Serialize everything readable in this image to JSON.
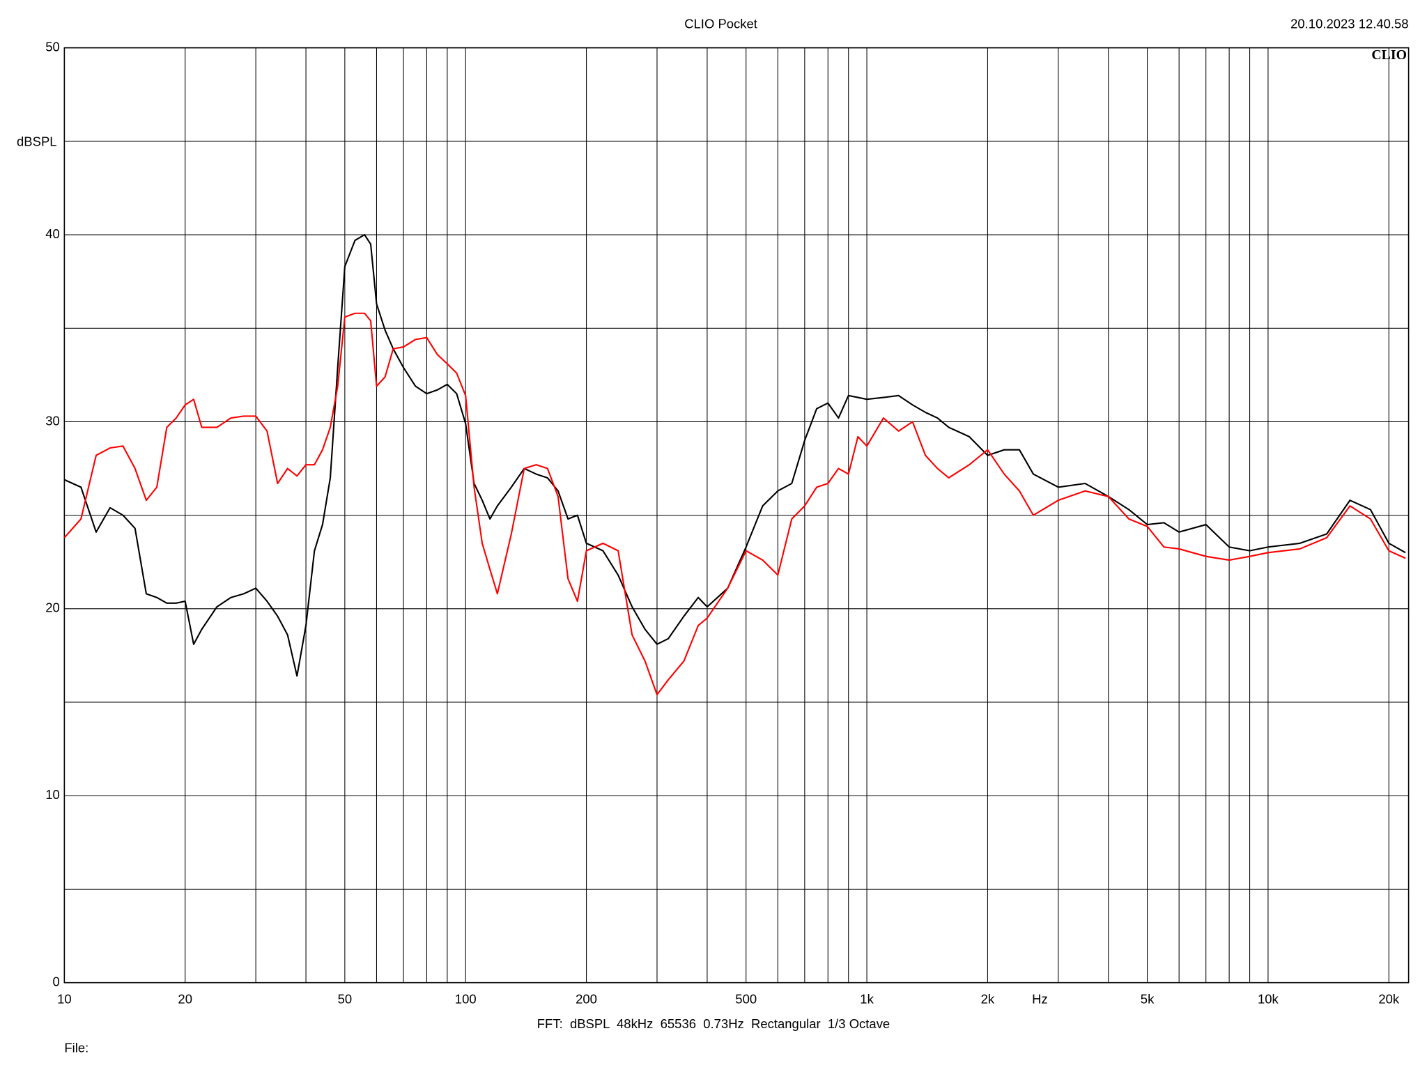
{
  "chart_data": {
    "type": "line",
    "title": "CLIO Pocket",
    "timestamp": "20.10.2023 12.40.58",
    "logo": "CLIO",
    "y_label": "dBSPL",
    "x_unit": "Hz",
    "footer": "FFT:  dBSPL  48kHz  65536  0.73Hz  Rectangular  1/3 Octave",
    "file_label": "File:",
    "xscale": "log",
    "grid": true,
    "xlim": [
      10,
      22400
    ],
    "ylim": [
      0,
      50
    ],
    "xticks": [
      10,
      20,
      50,
      100,
      200,
      500,
      {
        "value": 1000,
        "label": "1k"
      },
      {
        "value": 2000,
        "label": "2k"
      },
      {
        "value": 5000,
        "label": "5k"
      },
      {
        "value": 10000,
        "label": "10k"
      },
      {
        "value": 20000,
        "label": "20k"
      }
    ],
    "x_minor_grid": [
      30,
      40,
      60,
      70,
      80,
      90,
      300,
      400,
      600,
      700,
      800,
      900,
      3000,
      4000,
      6000,
      7000,
      8000,
      9000
    ],
    "yticks": [
      0,
      10,
      20,
      30,
      40,
      50
    ],
    "y_minor_grid": [
      5,
      15,
      25,
      35,
      45
    ],
    "x": [
      10,
      11,
      12,
      13,
      14,
      15,
      16,
      17,
      18,
      19,
      20,
      21,
      22,
      24,
      26,
      28,
      30,
      32,
      34,
      36,
      38,
      40,
      42,
      44,
      46,
      48,
      50,
      53,
      56,
      58,
      60,
      63,
      66,
      70,
      75,
      80,
      85,
      90,
      95,
      100,
      105,
      110,
      115,
      120,
      130,
      140,
      150,
      160,
      170,
      180,
      190,
      200,
      220,
      240,
      260,
      280,
      300,
      320,
      350,
      380,
      400,
      450,
      500,
      550,
      600,
      650,
      700,
      750,
      800,
      850,
      900,
      950,
      1000,
      1100,
      1200,
      1300,
      1400,
      1500,
      1600,
      1800,
      2000,
      2200,
      2400,
      2600,
      3000,
      3500,
      4000,
      4500,
      5000,
      5500,
      6000,
      7000,
      8000,
      9000,
      10000,
      12000,
      14000,
      16000,
      18000,
      20000,
      22000
    ],
    "series": [
      {
        "color": "#000000",
        "values": [
          26.9,
          26.5,
          24.1,
          25.4,
          25.0,
          24.3,
          20.8,
          20.6,
          20.3,
          20.3,
          20.4,
          18.1,
          18.9,
          20.1,
          20.6,
          20.8,
          21.1,
          20.4,
          19.6,
          18.6,
          16.4,
          19.1,
          23.1,
          24.5,
          27.0,
          32.9,
          38.3,
          39.7,
          40.0,
          39.5,
          36.3,
          34.9,
          33.9,
          32.9,
          31.9,
          31.5,
          31.7,
          32.0,
          31.5,
          29.9,
          26.7,
          25.8,
          24.8,
          25.5,
          26.5,
          27.5,
          27.2,
          27.0,
          26.3,
          24.8,
          25.0,
          23.5,
          23.1,
          21.8,
          20.1,
          18.9,
          18.1,
          18.4,
          19.6,
          20.6,
          20.1,
          21.1,
          23.3,
          25.5,
          26.3,
          26.7,
          29.0,
          30.7,
          31.0,
          30.2,
          31.4,
          31.3,
          31.2,
          31.3,
          31.4,
          30.9,
          30.5,
          30.2,
          29.7,
          29.2,
          28.2,
          28.5,
          28.5,
          27.2,
          26.5,
          26.7,
          26.0,
          25.3,
          24.5,
          24.6,
          24.1,
          24.5,
          23.3,
          23.1,
          23.3,
          23.5,
          24.0,
          25.8,
          25.3,
          23.5,
          23.0
        ]
      },
      {
        "color": "#ff0000",
        "values": [
          23.8,
          24.8,
          28.2,
          28.6,
          28.7,
          27.5,
          25.8,
          26.5,
          29.7,
          30.2,
          30.9,
          31.2,
          29.7,
          29.7,
          30.2,
          30.3,
          30.3,
          29.5,
          26.7,
          27.5,
          27.1,
          27.7,
          27.7,
          28.5,
          29.7,
          31.9,
          35.6,
          35.8,
          35.8,
          35.4,
          31.9,
          32.4,
          33.9,
          34.0,
          34.4,
          34.5,
          33.6,
          33.1,
          32.6,
          31.4,
          26.5,
          23.5,
          22.1,
          20.8,
          24.0,
          27.5,
          27.7,
          27.5,
          26.0,
          21.6,
          20.4,
          23.1,
          23.5,
          23.1,
          18.6,
          17.2,
          15.4,
          16.2,
          17.2,
          19.1,
          19.5,
          21.1,
          23.1,
          22.6,
          21.8,
          24.8,
          25.5,
          26.5,
          26.7,
          27.5,
          27.2,
          29.2,
          28.7,
          30.2,
          29.5,
          30.0,
          28.2,
          27.5,
          27.0,
          27.7,
          28.5,
          27.2,
          26.3,
          25.0,
          25.8,
          26.3,
          26.0,
          24.8,
          24.4,
          23.3,
          23.2,
          22.8,
          22.6,
          22.8,
          23.0,
          23.2,
          23.8,
          25.5,
          24.8,
          23.1,
          22.7
        ]
      }
    ]
  }
}
